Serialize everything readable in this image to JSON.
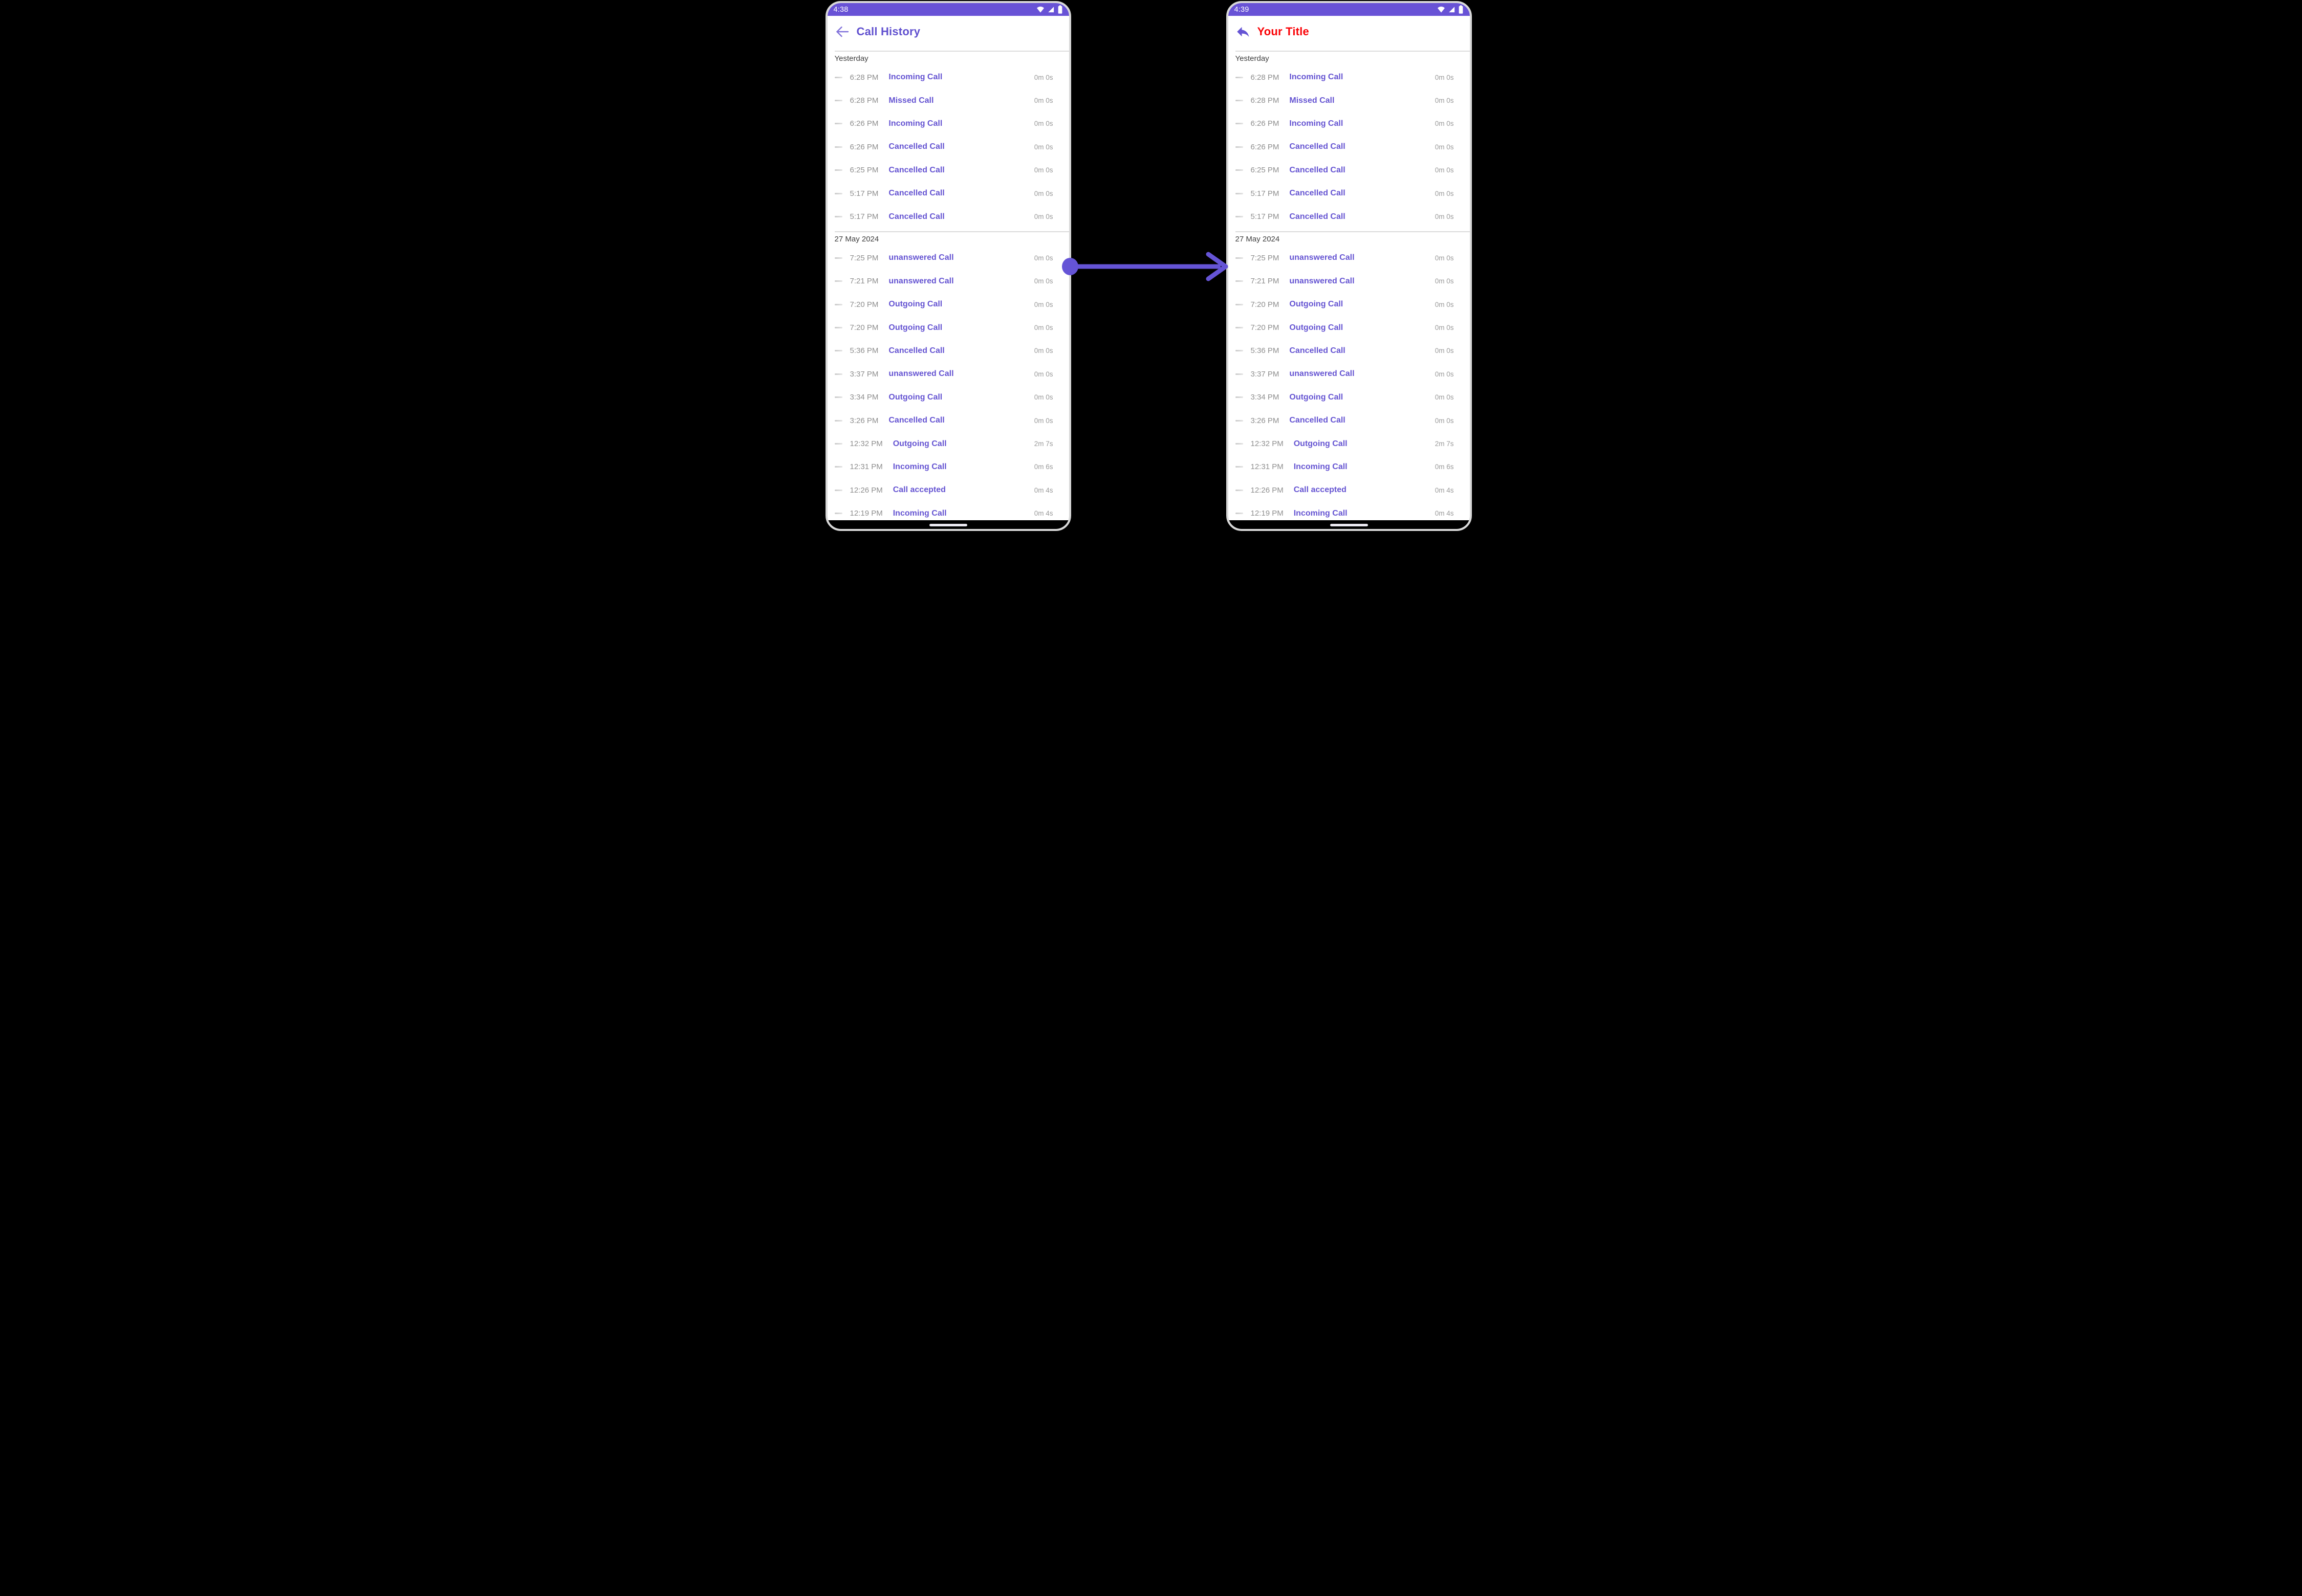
{
  "colors": {
    "status_bar_purple": "#6852d6",
    "call_type_purple": "#6554d2",
    "title_purple": "#6050cf",
    "title_red": "#fa0307",
    "time_gray": "#8e8e8e",
    "duration_gray": "#9a9a9a",
    "section_header_gray": "#3e3e3e",
    "background": "#000000",
    "arrow_purple": "#6554d6"
  },
  "phones": [
    {
      "status_time": "4:38",
      "title": "Call History",
      "header_icon": "back-arrow",
      "status_icons": [
        "wifi-icon",
        "signal-icon",
        "battery-icon"
      ]
    },
    {
      "status_time": "4:39",
      "title": "Your Title",
      "header_icon": "reply-arrow",
      "status_icons": [
        "wifi-icon",
        "signal-icon",
        "battery-icon"
      ]
    }
  ],
  "call_log": {
    "sections": [
      {
        "header": "Yesterday",
        "rows": [
          {
            "time": "6:28 PM",
            "type": "Incoming Call",
            "duration": "0m 0s"
          },
          {
            "time": "6:28 PM",
            "type": "Missed Call",
            "duration": "0m 0s"
          },
          {
            "time": "6:26 PM",
            "type": "Incoming Call",
            "duration": "0m 0s"
          },
          {
            "time": "6:26 PM",
            "type": "Cancelled Call",
            "duration": "0m 0s"
          },
          {
            "time": "6:25 PM",
            "type": "Cancelled Call",
            "duration": "0m 0s"
          },
          {
            "time": "5:17 PM",
            "type": "Cancelled Call",
            "duration": "0m 0s"
          },
          {
            "time": "5:17 PM",
            "type": "Cancelled Call",
            "duration": "0m 0s"
          }
        ]
      },
      {
        "header": "27 May 2024",
        "rows": [
          {
            "time": "7:25 PM",
            "type": "unanswered Call",
            "duration": "0m 0s"
          },
          {
            "time": "7:21 PM",
            "type": "unanswered Call",
            "duration": "0m 0s"
          },
          {
            "time": "7:20 PM",
            "type": "Outgoing Call",
            "duration": "0m 0s"
          },
          {
            "time": "7:20 PM",
            "type": "Outgoing Call",
            "duration": "0m 0s"
          },
          {
            "time": "5:36 PM",
            "type": "Cancelled Call",
            "duration": "0m 0s"
          },
          {
            "time": "3:37 PM",
            "type": "unanswered Call",
            "duration": "0m 0s"
          },
          {
            "time": "3:34 PM",
            "type": "Outgoing Call",
            "duration": "0m 0s"
          },
          {
            "time": "3:26 PM",
            "type": "Cancelled Call",
            "duration": "0m 0s"
          },
          {
            "time": "12:32 PM",
            "type": "Outgoing Call",
            "duration": "2m 7s"
          },
          {
            "time": "12:31 PM",
            "type": "Incoming Call",
            "duration": "0m 6s"
          },
          {
            "time": "12:26 PM",
            "type": "Call accepted",
            "duration": "0m 4s"
          }
        ]
      }
    ],
    "partial_row": {
      "time": "12:19 PM",
      "type": "Incoming Call",
      "duration": "0m 4s"
    }
  }
}
